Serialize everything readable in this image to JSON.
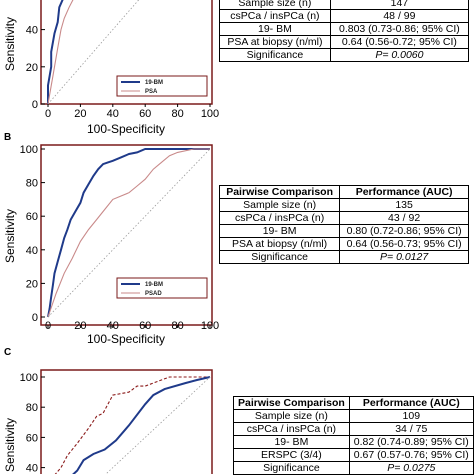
{
  "panels": [
    {
      "id": "A",
      "panel_label": "",
      "xlabel": "100-Specificity",
      "ylabel": "Sensitivity",
      "table": {
        "header": [],
        "rows": [
          [
            "Sample size (n)",
            "147"
          ],
          [
            "csPCa / insPCa (n)",
            "48 / 99"
          ],
          [
            "19- BM",
            "0.803 (0.73-0.86; 95% CI)"
          ],
          [
            "PSA at biopsy (n/ml)",
            "0.64 (0.56-0.72; 95% CI)"
          ],
          [
            "Significance",
            "P= 0.0060"
          ]
        ]
      }
    },
    {
      "id": "B",
      "panel_label": "B",
      "xlabel": "100-Specificity",
      "ylabel": "Sensitivity",
      "table": {
        "header": [
          "Pairwise Comparison",
          "Performance (AUC)"
        ],
        "rows": [
          [
            "Sample size (n)",
            "135"
          ],
          [
            "csPCa / insPCa (n)",
            "43 / 92"
          ],
          [
            "19- BM",
            "0.80 (0.72-0.86; 95% CI)"
          ],
          [
            "PSA at biopsy (n/ml)",
            "0.64 (0.56-0.73; 95% CI)"
          ],
          [
            "Significance",
            "P= 0.0127"
          ]
        ]
      }
    },
    {
      "id": "C",
      "panel_label": "C",
      "xlabel": "",
      "ylabel": "Sensitivity",
      "table": {
        "header": [
          "Pairwise Comparison",
          "Performance (AUC)"
        ],
        "rows": [
          [
            "Sample size (n)",
            "109"
          ],
          [
            "csPCa / insPCa (n)",
            "34 / 75"
          ],
          [
            "19- BM",
            "0.82 (0.74-0.89; 95% CI)"
          ],
          [
            "ERSPC (3/4)",
            "0.67 (0.57-0.76; 95% CI)"
          ],
          [
            "Significance",
            "P= 0.0275"
          ]
        ]
      }
    }
  ],
  "chart_data": [
    {
      "type": "line",
      "panel": "A",
      "xlabel": "100-Specificity",
      "ylabel": "Sensitivity",
      "xlim": [
        0,
        100
      ],
      "ylim": [
        0,
        100
      ],
      "x_ticks": [
        0,
        20,
        40,
        60,
        80,
        100
      ],
      "y_ticks": [
        0,
        20,
        40,
        60
      ],
      "legend": {
        "placement": "bottom-right",
        "entries": [
          "19-BM",
          "PSA"
        ]
      },
      "series": [
        {
          "name": "19-BM",
          "style": "solid",
          "color": "#1f3a8a",
          "x": [
            0,
            0,
            2,
            2,
            4,
            6,
            7,
            9,
            11,
            13,
            15,
            17,
            19,
            22,
            25,
            28,
            31,
            35,
            38,
            40
          ],
          "y": [
            0,
            10,
            20,
            28,
            38,
            44,
            52,
            56,
            62,
            68,
            72,
            80,
            85,
            88,
            93,
            96,
            98,
            98,
            99,
            100
          ]
        },
        {
          "name": "PSA",
          "style": "solid",
          "color": "#c98a8a",
          "x": [
            0,
            3,
            6,
            8,
            10,
            13,
            16,
            20,
            25,
            30,
            35,
            40,
            45
          ],
          "y": [
            0,
            15,
            30,
            40,
            46,
            52,
            57,
            62,
            72,
            80,
            88,
            94,
            100
          ]
        },
        {
          "name": "",
          "style": "dotted",
          "color": "#999999",
          "x": [
            0,
            100
          ],
          "y": [
            0,
            100
          ]
        }
      ]
    },
    {
      "type": "line",
      "panel": "B",
      "xlabel": "100-Specificity",
      "ylabel": "Sensitivity",
      "xlim": [
        0,
        100
      ],
      "ylim": [
        0,
        100
      ],
      "x_ticks": [
        0,
        20,
        40,
        60,
        80,
        100
      ],
      "y_ticks": [
        0,
        20,
        40,
        60,
        80,
        100
      ],
      "legend": {
        "placement": "bottom-right",
        "entries": [
          "19-BM",
          "PSAD"
        ]
      },
      "series": [
        {
          "name": "19-BM",
          "style": "solid",
          "color": "#1f3a8a",
          "x": [
            0,
            1,
            2,
            3,
            4,
            6,
            8,
            10,
            12,
            14,
            17,
            20,
            22,
            25,
            28,
            31,
            34,
            37,
            40,
            45,
            50,
            55,
            60,
            100
          ],
          "y": [
            0,
            5,
            12,
            19,
            26,
            33,
            40,
            47,
            52,
            58,
            63,
            68,
            74,
            79,
            84,
            88,
            91,
            92,
            93,
            95,
            97,
            98,
            100,
            100
          ]
        },
        {
          "name": "PSAD",
          "style": "solid",
          "color": "#c98a8a",
          "x": [
            0,
            5,
            10,
            15,
            20,
            25,
            30,
            35,
            40,
            50,
            55,
            60,
            65,
            70,
            75,
            80,
            90,
            100
          ],
          "y": [
            0,
            14,
            26,
            35,
            45,
            52,
            58,
            64,
            70,
            74,
            78,
            82,
            88,
            92,
            96,
            98,
            100,
            100
          ]
        },
        {
          "name": "",
          "style": "dotted",
          "color": "#999999",
          "x": [
            0,
            100
          ],
          "y": [
            0,
            100
          ]
        }
      ]
    },
    {
      "type": "line",
      "panel": "C",
      "xlabel": "",
      "ylabel": "Sensitivity",
      "xlim": [
        0,
        100
      ],
      "ylim": [
        30,
        100
      ],
      "x_ticks": [],
      "y_ticks": [
        40,
        60,
        80,
        100
      ],
      "legend": null,
      "series": [
        {
          "name": "19-BM",
          "style": "dashed",
          "color": "#8b1a1a",
          "x": [
            0,
            8,
            12,
            18,
            25,
            30,
            34,
            40,
            50,
            55,
            60,
            70,
            75,
            85,
            95,
            100
          ],
          "y": [
            30,
            40,
            48,
            56,
            66,
            74,
            76,
            88,
            90,
            94,
            94,
            98,
            100,
            100,
            100,
            100
          ]
        },
        {
          "name": "ERSPC (3/4)",
          "style": "solid",
          "color": "#1f3a8a",
          "x": [
            10,
            18,
            22,
            28,
            35,
            42,
            50,
            60,
            65,
            72,
            85,
            92,
            100
          ],
          "y": [
            30,
            38,
            45,
            49,
            52,
            58,
            68,
            82,
            88,
            92,
            96,
            98,
            100
          ]
        },
        {
          "name": "",
          "style": "dotted",
          "color": "#999999",
          "x": [
            30,
            100
          ],
          "y": [
            30,
            100
          ]
        }
      ]
    }
  ]
}
